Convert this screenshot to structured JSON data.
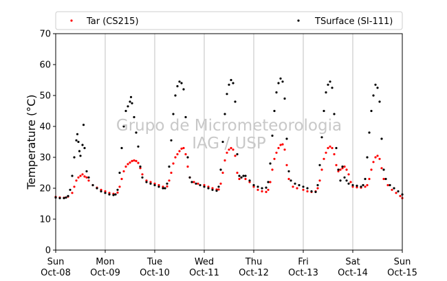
{
  "chart_data": {
    "type": "scatter",
    "ylabel": "Temperature (°C)",
    "ylim": [
      0,
      70
    ],
    "y_ticks": [
      "0",
      "10",
      "20",
      "30",
      "40",
      "50",
      "60",
      "70"
    ],
    "xlim_days": [
      0,
      7
    ],
    "x_tick_labels": [
      {
        "day": "Sun",
        "date": "Oct-08"
      },
      {
        "day": "Mon",
        "date": "Oct-09"
      },
      {
        "day": "Tue",
        "date": "Oct-10"
      },
      {
        "day": "Wed",
        "date": "Oct-11"
      },
      {
        "day": "Thu",
        "date": "Oct-12"
      },
      {
        "day": "Fri",
        "date": "Oct-13"
      },
      {
        "day": "Sat",
        "date": "Oct-14"
      },
      {
        "day": "Sun",
        "date": "Oct-15"
      }
    ],
    "grid": "vertical",
    "legend_placement": "top",
    "watermark": [
      "Grupo de Micrometeorologia",
      "IAG / USP"
    ],
    "series": [
      {
        "name": "Tar (CS215)",
        "color": "#ff0000",
        "points": [
          [
            "Oct-08 00:00",
            17.2
          ],
          [
            "Oct-08 02:00",
            17.0
          ],
          [
            "Oct-08 04:00",
            16.9
          ],
          [
            "Oct-08 06:00",
            17.3
          ],
          [
            "Oct-08 08:00",
            18.5
          ],
          [
            "Oct-08 09:00",
            20.5
          ],
          [
            "Oct-08 10:00",
            22.5
          ],
          [
            "Oct-08 11:00",
            23.5
          ],
          [
            "Oct-08 12:00",
            24.0
          ],
          [
            "Oct-08 13:00",
            24.5
          ],
          [
            "Oct-08 14:00",
            23.8
          ],
          [
            "Oct-08 15:00",
            23.5
          ],
          [
            "Oct-08 16:00",
            22.5
          ],
          [
            "Oct-08 18:00",
            21.0
          ],
          [
            "Oct-08 20:00",
            20.2
          ],
          [
            "Oct-08 22:00",
            19.5
          ],
          [
            "Oct-09 00:00",
            19.0
          ],
          [
            "Oct-09 02:00",
            18.5
          ],
          [
            "Oct-09 04:00",
            18.2
          ],
          [
            "Oct-09 06:00",
            18.6
          ],
          [
            "Oct-09 07:00",
            20.5
          ],
          [
            "Oct-09 08:00",
            23.0
          ],
          [
            "Oct-09 09:00",
            25.5
          ],
          [
            "Oct-09 10:00",
            27.0
          ],
          [
            "Oct-09 11:00",
            27.8
          ],
          [
            "Oct-09 12:00",
            28.3
          ],
          [
            "Oct-09 13:00",
            28.8
          ],
          [
            "Oct-09 14:00",
            29.0
          ],
          [
            "Oct-09 15:00",
            28.8
          ],
          [
            "Oct-09 16:00",
            28.2
          ],
          [
            "Oct-09 17:00",
            26.5
          ],
          [
            "Oct-09 18:00",
            24.5
          ],
          [
            "Oct-09 20:00",
            22.5
          ],
          [
            "Oct-09 22:00",
            22.0
          ],
          [
            "Oct-10 00:00",
            21.5
          ],
          [
            "Oct-10 02:00",
            21.0
          ],
          [
            "Oct-10 04:00",
            20.5
          ],
          [
            "Oct-10 06:00",
            20.6
          ],
          [
            "Oct-10 07:00",
            22.5
          ],
          [
            "Oct-10 08:00",
            25.0
          ],
          [
            "Oct-10 09:00",
            28.0
          ],
          [
            "Oct-10 10:00",
            30.0
          ],
          [
            "Oct-10 11:00",
            31.0
          ],
          [
            "Oct-10 12:00",
            32.0
          ],
          [
            "Oct-10 13:00",
            32.8
          ],
          [
            "Oct-10 14:00",
            33.0
          ],
          [
            "Oct-10 15:00",
            31.0
          ],
          [
            "Oct-10 16:00",
            27.0
          ],
          [
            "Oct-10 17:00",
            23.5
          ],
          [
            "Oct-10 19:00",
            22.0
          ],
          [
            "Oct-10 21:00",
            21.5
          ],
          [
            "Oct-11 00:00",
            21.0
          ],
          [
            "Oct-11 02:00",
            20.5
          ],
          [
            "Oct-11 04:00",
            20.0
          ],
          [
            "Oct-11 06:00",
            19.6
          ],
          [
            "Oct-11 07:00",
            19.6
          ],
          [
            "Oct-11 08:00",
            21.5
          ],
          [
            "Oct-11 09:00",
            25.0
          ],
          [
            "Oct-11 10:00",
            29.0
          ],
          [
            "Oct-11 11:00",
            31.5
          ],
          [
            "Oct-11 12:00",
            32.5
          ],
          [
            "Oct-11 13:00",
            33.0
          ],
          [
            "Oct-11 14:00",
            32.5
          ],
          [
            "Oct-11 15:00",
            30.5
          ],
          [
            "Oct-11 16:00",
            25.0
          ],
          [
            "Oct-11 17:00",
            23.0
          ],
          [
            "Oct-11 18:00",
            23.5
          ],
          [
            "Oct-11 20:00",
            23.0
          ],
          [
            "Oct-11 22:00",
            22.0
          ],
          [
            "Oct-12 00:00",
            20.5
          ],
          [
            "Oct-12 02:00",
            19.5
          ],
          [
            "Oct-12 04:00",
            19.0
          ],
          [
            "Oct-12 06:00",
            18.8
          ],
          [
            "Oct-12 07:00",
            19.5
          ],
          [
            "Oct-12 08:00",
            22.0
          ],
          [
            "Oct-12 09:00",
            26.0
          ],
          [
            "Oct-12 10:00",
            29.5
          ],
          [
            "Oct-12 11:00",
            31.5
          ],
          [
            "Oct-12 12:00",
            33.0
          ],
          [
            "Oct-12 13:00",
            34.0
          ],
          [
            "Oct-12 14:00",
            34.2
          ],
          [
            "Oct-12 15:00",
            32.5
          ],
          [
            "Oct-12 16:00",
            27.5
          ],
          [
            "Oct-12 17:00",
            23.0
          ],
          [
            "Oct-12 19:00",
            20.5
          ],
          [
            "Oct-12 21:00",
            20.0
          ],
          [
            "Oct-13 00:00",
            19.5
          ],
          [
            "Oct-13 02:00",
            19.0
          ],
          [
            "Oct-13 04:00",
            18.8
          ],
          [
            "Oct-13 06:00",
            19.0
          ],
          [
            "Oct-13 07:00",
            20.0
          ],
          [
            "Oct-13 08:00",
            22.5
          ],
          [
            "Oct-13 09:00",
            26.0
          ],
          [
            "Oct-13 10:00",
            29.5
          ],
          [
            "Oct-13 11:00",
            31.5
          ],
          [
            "Oct-13 12:00",
            33.0
          ],
          [
            "Oct-13 13:00",
            33.5
          ],
          [
            "Oct-13 14:00",
            33.0
          ],
          [
            "Oct-13 15:00",
            31.0
          ],
          [
            "Oct-13 16:00",
            27.5
          ],
          [
            "Oct-13 17:00",
            25.5
          ],
          [
            "Oct-13 18:00",
            26.0
          ],
          [
            "Oct-13 19:00",
            26.5
          ],
          [
            "Oct-13 20:00",
            27.0
          ],
          [
            "Oct-13 21:00",
            26.0
          ],
          [
            "Oct-13 22:00",
            24.5
          ],
          [
            "Oct-13 23:00",
            22.0
          ],
          [
            "Oct-14 00:00",
            20.5
          ],
          [
            "Oct-14 02:00",
            20.3
          ],
          [
            "Oct-14 04:00",
            20.2
          ],
          [
            "Oct-14 06:00",
            20.5
          ],
          [
            "Oct-14 07:00",
            21.0
          ],
          [
            "Oct-14 08:00",
            23.0
          ],
          [
            "Oct-14 09:00",
            26.0
          ],
          [
            "Oct-14 10:00",
            28.5
          ],
          [
            "Oct-14 11:00",
            30.0
          ],
          [
            "Oct-14 12:00",
            30.5
          ],
          [
            "Oct-14 13:00",
            29.5
          ],
          [
            "Oct-14 14:00",
            26.5
          ],
          [
            "Oct-14 15:00",
            23.0
          ],
          [
            "Oct-14 17:00",
            21.0
          ],
          [
            "Oct-14 19:00",
            19.5
          ],
          [
            "Oct-14 21:00",
            18.5
          ],
          [
            "Oct-14 23:00",
            17.5
          ],
          [
            "Oct-15 00:00",
            16.8
          ]
        ]
      },
      {
        "name": "TSurface (SI-111)",
        "color": "#000000",
        "points": [
          [
            "Oct-08 00:00",
            17.0
          ],
          [
            "Oct-08 02:00",
            16.8
          ],
          [
            "Oct-08 04:00",
            16.8
          ],
          [
            "Oct-08 05:00",
            17.0
          ],
          [
            "Oct-08 06:00",
            17.5
          ],
          [
            "Oct-08 07:00",
            19.5
          ],
          [
            "Oct-08 08:00",
            24.0
          ],
          [
            "Oct-08 09:00",
            30.0
          ],
          [
            "Oct-08 10:00",
            35.5
          ],
          [
            "Oct-08 10:30",
            37.5
          ],
          [
            "Oct-08 11:00",
            35.0
          ],
          [
            "Oct-08 11:30",
            32.0
          ],
          [
            "Oct-08 12:00",
            30.5
          ],
          [
            "Oct-08 13:00",
            34.0
          ],
          [
            "Oct-08 13:30",
            40.5
          ],
          [
            "Oct-08 14:00",
            33.0
          ],
          [
            "Oct-08 15:00",
            25.5
          ],
          [
            "Oct-08 16:00",
            23.5
          ],
          [
            "Oct-08 18:00",
            21.0
          ],
          [
            "Oct-08 20:00",
            20.0
          ],
          [
            "Oct-08 22:00",
            19.0
          ],
          [
            "Oct-09 00:00",
            18.5
          ],
          [
            "Oct-09 02:00",
            18.0
          ],
          [
            "Oct-09 04:00",
            17.8
          ],
          [
            "Oct-09 05:00",
            18.0
          ],
          [
            "Oct-09 06:00",
            19.5
          ],
          [
            "Oct-09 07:00",
            25.0
          ],
          [
            "Oct-09 08:00",
            33.0
          ],
          [
            "Oct-09 09:00",
            40.0
          ],
          [
            "Oct-09 10:00",
            45.0
          ],
          [
            "Oct-09 11:00",
            46.5
          ],
          [
            "Oct-09 12:00",
            48.0
          ],
          [
            "Oct-09 12:30",
            49.5
          ],
          [
            "Oct-09 13:00",
            47.5
          ],
          [
            "Oct-09 14:00",
            43.0
          ],
          [
            "Oct-09 15:00",
            38.0
          ],
          [
            "Oct-09 16:00",
            33.5
          ],
          [
            "Oct-09 17:00",
            27.0
          ],
          [
            "Oct-09 18:00",
            23.5
          ],
          [
            "Oct-09 20:00",
            22.0
          ],
          [
            "Oct-09 22:00",
            21.5
          ],
          [
            "Oct-10 00:00",
            21.0
          ],
          [
            "Oct-10 02:00",
            20.5
          ],
          [
            "Oct-10 04:00",
            20.0
          ],
          [
            "Oct-10 05:00",
            20.0
          ],
          [
            "Oct-10 06:00",
            21.5
          ],
          [
            "Oct-10 07:00",
            27.0
          ],
          [
            "Oct-10 08:00",
            35.5
          ],
          [
            "Oct-10 09:00",
            44.0
          ],
          [
            "Oct-10 10:00",
            50.0
          ],
          [
            "Oct-10 11:00",
            53.0
          ],
          [
            "Oct-10 12:00",
            54.5
          ],
          [
            "Oct-10 13:00",
            54.0
          ],
          [
            "Oct-10 14:00",
            52.0
          ],
          [
            "Oct-10 15:00",
            43.0
          ],
          [
            "Oct-10 16:00",
            30.0
          ],
          [
            "Oct-10 17:00",
            23.5
          ],
          [
            "Oct-10 18:00",
            22.0
          ],
          [
            "Oct-10 20:00",
            21.5
          ],
          [
            "Oct-10 22:00",
            21.0
          ],
          [
            "Oct-11 00:00",
            20.5
          ],
          [
            "Oct-11 02:00",
            20.0
          ],
          [
            "Oct-11 04:00",
            19.5
          ],
          [
            "Oct-11 06:00",
            19.2
          ],
          [
            "Oct-11 07:00",
            20.5
          ],
          [
            "Oct-11 08:00",
            26.0
          ],
          [
            "Oct-11 09:00",
            35.0
          ],
          [
            "Oct-11 10:00",
            44.0
          ],
          [
            "Oct-11 11:00",
            50.5
          ],
          [
            "Oct-11 12:00",
            53.5
          ],
          [
            "Oct-11 13:00",
            55.0
          ],
          [
            "Oct-11 14:00",
            54.0
          ],
          [
            "Oct-11 15:00",
            48.0
          ],
          [
            "Oct-11 16:00",
            31.0
          ],
          [
            "Oct-11 17:00",
            24.0
          ],
          [
            "Oct-11 18:00",
            23.5
          ],
          [
            "Oct-11 19:00",
            24.0
          ],
          [
            "Oct-11 20:00",
            24.0
          ],
          [
            "Oct-11 22:00",
            22.5
          ],
          [
            "Oct-12 00:00",
            21.0
          ],
          [
            "Oct-12 02:00",
            20.5
          ],
          [
            "Oct-12 04:00",
            20.0
          ],
          [
            "Oct-12 06:00",
            20.2
          ],
          [
            "Oct-12 07:00",
            22.0
          ],
          [
            "Oct-12 08:00",
            28.0
          ],
          [
            "Oct-12 09:00",
            37.0
          ],
          [
            "Oct-12 10:00",
            45.0
          ],
          [
            "Oct-12 11:00",
            51.0
          ],
          [
            "Oct-12 12:00",
            54.0
          ],
          [
            "Oct-12 13:00",
            55.5
          ],
          [
            "Oct-12 14:00",
            54.5
          ],
          [
            "Oct-12 15:00",
            49.0
          ],
          [
            "Oct-12 16:00",
            36.0
          ],
          [
            "Oct-12 17:00",
            25.5
          ],
          [
            "Oct-12 18:00",
            22.5
          ],
          [
            "Oct-12 20:00",
            21.5
          ],
          [
            "Oct-12 22:00",
            21.0
          ],
          [
            "Oct-13 00:00",
            20.5
          ],
          [
            "Oct-13 02:00",
            20.0
          ],
          [
            "Oct-13 04:00",
            19.0
          ],
          [
            "Oct-13 06:00",
            18.8
          ],
          [
            "Oct-13 07:00",
            21.0
          ],
          [
            "Oct-13 08:00",
            27.5
          ],
          [
            "Oct-13 09:00",
            36.5
          ],
          [
            "Oct-13 10:00",
            45.0
          ],
          [
            "Oct-13 11:00",
            51.0
          ],
          [
            "Oct-13 12:00",
            53.5
          ],
          [
            "Oct-13 13:00",
            54.5
          ],
          [
            "Oct-13 14:00",
            52.5
          ],
          [
            "Oct-13 15:00",
            44.0
          ],
          [
            "Oct-13 16:00",
            33.0
          ],
          [
            "Oct-13 17:00",
            26.0
          ],
          [
            "Oct-13 18:00",
            22.5
          ],
          [
            "Oct-13 19:00",
            27.0
          ],
          [
            "Oct-13 20:00",
            23.5
          ],
          [
            "Oct-13 21:00",
            22.5
          ],
          [
            "Oct-13 22:00",
            21.5
          ],
          [
            "Oct-14 00:00",
            21.0
          ],
          [
            "Oct-14 02:00",
            20.8
          ],
          [
            "Oct-14 04:00",
            20.5
          ],
          [
            "Oct-14 05:00",
            21.0
          ],
          [
            "Oct-14 06:00",
            23.0
          ],
          [
            "Oct-14 07:00",
            30.0
          ],
          [
            "Oct-14 08:00",
            38.0
          ],
          [
            "Oct-14 09:00",
            45.0
          ],
          [
            "Oct-14 10:00",
            50.0
          ],
          [
            "Oct-14 11:00",
            53.5
          ],
          [
            "Oct-14 12:00",
            52.5
          ],
          [
            "Oct-14 13:00",
            48.0
          ],
          [
            "Oct-14 14:00",
            36.0
          ],
          [
            "Oct-14 15:00",
            26.0
          ],
          [
            "Oct-14 16:00",
            23.0
          ],
          [
            "Oct-14 18:00",
            21.0
          ],
          [
            "Oct-14 20:00",
            20.0
          ],
          [
            "Oct-14 22:00",
            19.0
          ],
          [
            "Oct-15 00:00",
            18.0
          ]
        ]
      }
    ]
  }
}
